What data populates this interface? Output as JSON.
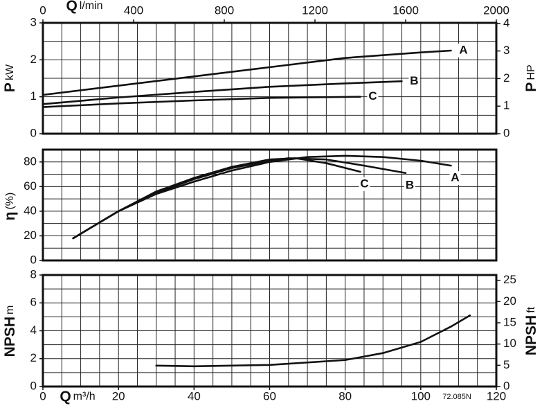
{
  "chart_data": [
    {
      "type": "line",
      "xlabel": "Q",
      "xunit": "l/min",
      "ylabel": "P",
      "yunit": "kW",
      "y2label": "P",
      "y2unit": "HP",
      "xlim": [
        0,
        2000
      ],
      "xticks": [
        0,
        400,
        800,
        1200,
        1600,
        2000
      ],
      "ylim": [
        0,
        3
      ],
      "yticks": [
        0,
        1,
        2,
        3
      ],
      "y2lim": [
        0,
        4.02
      ],
      "y2ticks": [
        0,
        1,
        2,
        3,
        4
      ],
      "grid": true,
      "color": "#111111",
      "series": [
        {
          "name": "A",
          "color": "#111111",
          "x": [
            0,
            333,
            667,
            1000,
            1333,
            1667,
            1800
          ],
          "values": [
            1.05,
            1.3,
            1.55,
            1.8,
            2.05,
            2.2,
            2.25
          ]
        },
        {
          "name": "B",
          "color": "#111111",
          "x": [
            0,
            333,
            667,
            1000,
            1333,
            1583
          ],
          "values": [
            0.8,
            0.98,
            1.13,
            1.27,
            1.36,
            1.42
          ]
        },
        {
          "name": "C",
          "color": "#111111",
          "x": [
            0,
            333,
            667,
            1000,
            1400
          ],
          "values": [
            0.72,
            0.82,
            0.9,
            0.97,
            1.0
          ]
        }
      ]
    },
    {
      "type": "line",
      "ylabel": "η",
      "yunit": "(%)",
      "xlim": [
        0,
        120
      ],
      "ylim": [
        0,
        90
      ],
      "yticks": [
        0,
        20,
        40,
        60,
        80
      ],
      "grid": true,
      "series": [
        {
          "name": "A",
          "color": "#111111",
          "x": [
            8,
            20,
            30,
            40,
            50,
            60,
            70,
            80,
            90,
            100,
            108
          ],
          "values": [
            18,
            40,
            54,
            64,
            73,
            80,
            84,
            85,
            84,
            81,
            77
          ]
        },
        {
          "name": "B",
          "color": "#111111",
          "x": [
            8,
            20,
            30,
            40,
            50,
            60,
            65,
            75,
            85,
            96
          ],
          "values": [
            18,
            40,
            55,
            66,
            75,
            81,
            83,
            82,
            77,
            71
          ]
        },
        {
          "name": "C",
          "color": "#111111",
          "x": [
            8,
            20,
            30,
            40,
            50,
            60,
            67,
            75,
            84
          ],
          "values": [
            18,
            40,
            56,
            67,
            76,
            82,
            83,
            79,
            72
          ]
        }
      ]
    },
    {
      "type": "line",
      "xlabel": "Q",
      "xunit": "m³/h",
      "ylabel": "NPSH",
      "yunit": "m",
      "y2label": "NPSH",
      "y2unit": "ft",
      "annotation": "72.085N",
      "xlim": [
        0,
        120
      ],
      "xticks": [
        0,
        20,
        40,
        60,
        80,
        100,
        120
      ],
      "ylim": [
        0,
        8
      ],
      "yticks": [
        0,
        2,
        4,
        6,
        8
      ],
      "y2lim": [
        0,
        26.25
      ],
      "y2ticks": [
        0,
        5,
        10,
        15,
        20,
        25
      ],
      "grid": true,
      "series": [
        {
          "color": "#111111",
          "x": [
            30,
            40,
            60,
            80,
            90,
            100,
            108,
            113
          ],
          "values": [
            1.5,
            1.45,
            1.55,
            1.9,
            2.4,
            3.2,
            4.3,
            5.1
          ]
        }
      ]
    }
  ]
}
